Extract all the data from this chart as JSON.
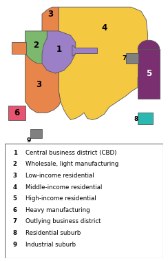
{
  "colors": {
    "1": "#9b7fc7",
    "2": "#7cb96e",
    "3": "#e8854a",
    "4": "#f5c842",
    "5": "#7a3070",
    "6": "#e85470",
    "7": "#808080",
    "8": "#2ab8b0",
    "9": "#808080"
  },
  "legend": [
    [
      "1",
      "Central business district (CBD)"
    ],
    [
      "2",
      "Wholesale, light manufacturing"
    ],
    [
      "3",
      "Low-income residential"
    ],
    [
      "4",
      "Middle-income residential"
    ],
    [
      "5",
      "High-income residential"
    ],
    [
      "6",
      "Heavy manufacturing"
    ],
    [
      "7",
      "Outlying business district"
    ],
    [
      "8",
      "Residential suburb"
    ],
    [
      "9",
      "Industrial suburb"
    ]
  ],
  "background": "#ffffff",
  "border_color": "#555555",
  "label_fontsize": 7.5,
  "legend_fontsize": 6.2
}
